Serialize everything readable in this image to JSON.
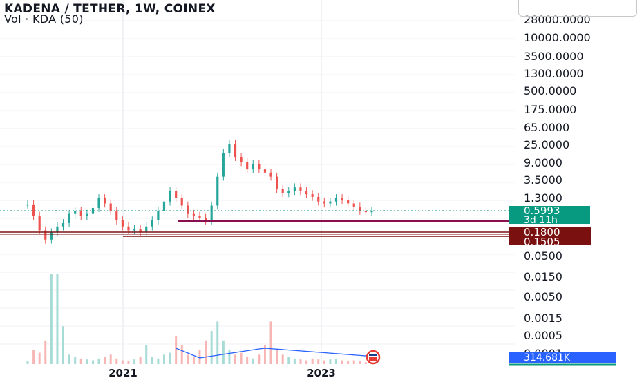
{
  "header": {
    "title": "KADENA / TETHER, 1W, COINEX",
    "subtitle": "Vol · KDA (50)"
  },
  "colors": {
    "up": "#26a69a",
    "down": "#ef5350",
    "ma": "#2962ff",
    "support": "#880e4f",
    "level_dark": "#7b1010",
    "grid": "#e0e3eb",
    "last_price": "#089981",
    "volume_label_bg": "#2962ff"
  },
  "chart_data": {
    "type": "candlestick",
    "title": "KADENA / TETHER, 1W, COINEX",
    "y_scale": "log",
    "price_axis_ticks": [
      "28000.0000",
      "10000.0000",
      "3500.0000",
      "1300.0000",
      "500.0000",
      "175.0000",
      "65.0000",
      "25.0000",
      "9.0000",
      "3.5000",
      "1.3000",
      "0.5000",
      "0.1500",
      "0.0500",
      "0.0150",
      "0.0050",
      "0.0015",
      "0.0005",
      "0.0001"
    ],
    "x_tick_labels": [
      "2021",
      "2023"
    ],
    "last_price": "0.5993",
    "countdown": "3d 11h",
    "levels": [
      {
        "label": "0.1800",
        "value": 0.18,
        "line": "double"
      },
      {
        "label": "0.1505",
        "value": 0.1505,
        "line": "single"
      }
    ],
    "support_line": {
      "value": 0.35
    },
    "volume_label": "314.681K",
    "ohlc_approx": [
      0.85,
      0.45,
      0.2,
      0.12,
      0.18,
      0.25,
      0.3,
      0.5,
      0.6,
      0.45,
      0.5,
      0.7,
      1.2,
      0.9,
      0.6,
      0.35,
      0.25,
      0.2,
      0.22,
      0.18,
      0.25,
      0.35,
      0.6,
      1.0,
      1.8,
      1.2,
      0.8,
      0.5,
      0.45,
      0.4,
      0.35,
      0.8,
      4,
      15,
      25,
      12,
      9,
      6,
      8,
      6,
      5,
      4,
      2,
      1.6,
      1.8,
      2.2,
      1.8,
      1.5,
      1.3,
      1.0,
      0.9,
      1.0,
      1.2,
      1.1,
      0.9,
      0.75,
      0.6,
      0.55,
      0.6
    ],
    "volume_approx": [
      3,
      15,
      12,
      25,
      95,
      95,
      40,
      10,
      8,
      6,
      5,
      4,
      6,
      8,
      10,
      6,
      4,
      3,
      5,
      8,
      20,
      8,
      6,
      10,
      12,
      30,
      20,
      10,
      8,
      15,
      25,
      35,
      45,
      25,
      15,
      10,
      12,
      8,
      6,
      10,
      20,
      45,
      15,
      10,
      8,
      6,
      5,
      4,
      6,
      5,
      4,
      5,
      6,
      4,
      3,
      4,
      3,
      2,
      2
    ]
  }
}
